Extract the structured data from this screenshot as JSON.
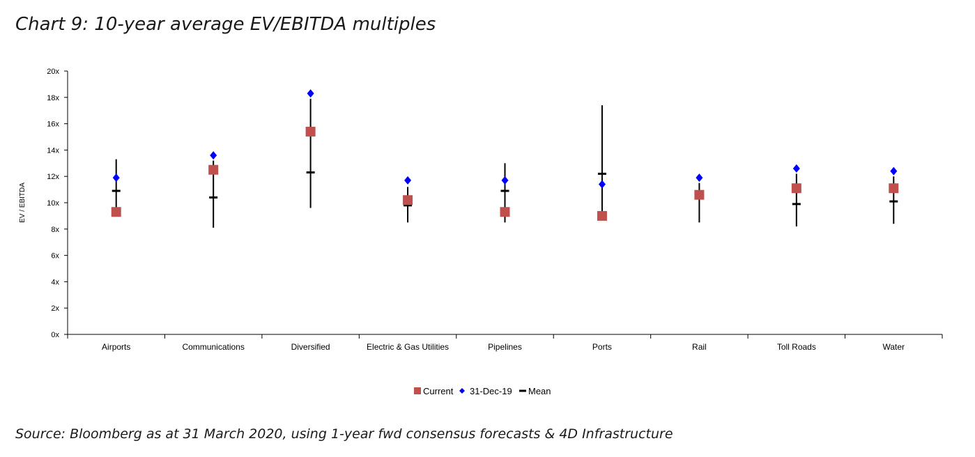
{
  "page": {
    "title": "Chart 9: 10-year average EV/EBITDA multiples",
    "source": "Source: Bloomberg as at 31 March 2020, using 1-year fwd consensus forecasts & 4D Infrastructure"
  },
  "chart_data": {
    "type": "scatter",
    "ylabel": "EV / EBITDA",
    "ylim": [
      0,
      20
    ],
    "yticks": [
      0,
      2,
      4,
      6,
      8,
      10,
      12,
      14,
      16,
      18,
      20
    ],
    "ytick_labels": [
      "0x",
      "2x",
      "4x",
      "6x",
      "8x",
      "10x",
      "12x",
      "14x",
      "16x",
      "18x",
      "20x"
    ],
    "categories": [
      "Airports",
      "Communications",
      "Diversified",
      "Electric & Gas Utilities",
      "Pipelines",
      "Ports",
      "Rail",
      "Toll Roads",
      "Water"
    ],
    "range": {
      "low": [
        9.3,
        8.1,
        9.6,
        8.5,
        8.5,
        8.9,
        8.5,
        8.2,
        8.4
      ],
      "high": [
        13.3,
        13.2,
        17.9,
        11.2,
        13.0,
        17.4,
        11.5,
        12.2,
        12.0
      ]
    },
    "series": [
      {
        "name": "Current",
        "marker": "square",
        "color": "#c0504d",
        "values": [
          9.3,
          12.5,
          15.4,
          10.2,
          9.3,
          9.0,
          10.6,
          11.1,
          11.1
        ]
      },
      {
        "name": "31-Dec-19",
        "marker": "diamond",
        "color": "#0000ff",
        "values": [
          11.9,
          13.6,
          18.3,
          11.7,
          11.7,
          11.4,
          11.9,
          12.6,
          12.4
        ]
      },
      {
        "name": "Mean",
        "marker": "dash",
        "color": "#000000",
        "values": [
          10.9,
          10.4,
          12.3,
          9.8,
          10.9,
          12.2,
          10.5,
          9.9,
          10.1
        ]
      }
    ],
    "legend_position": "bottom-center"
  }
}
